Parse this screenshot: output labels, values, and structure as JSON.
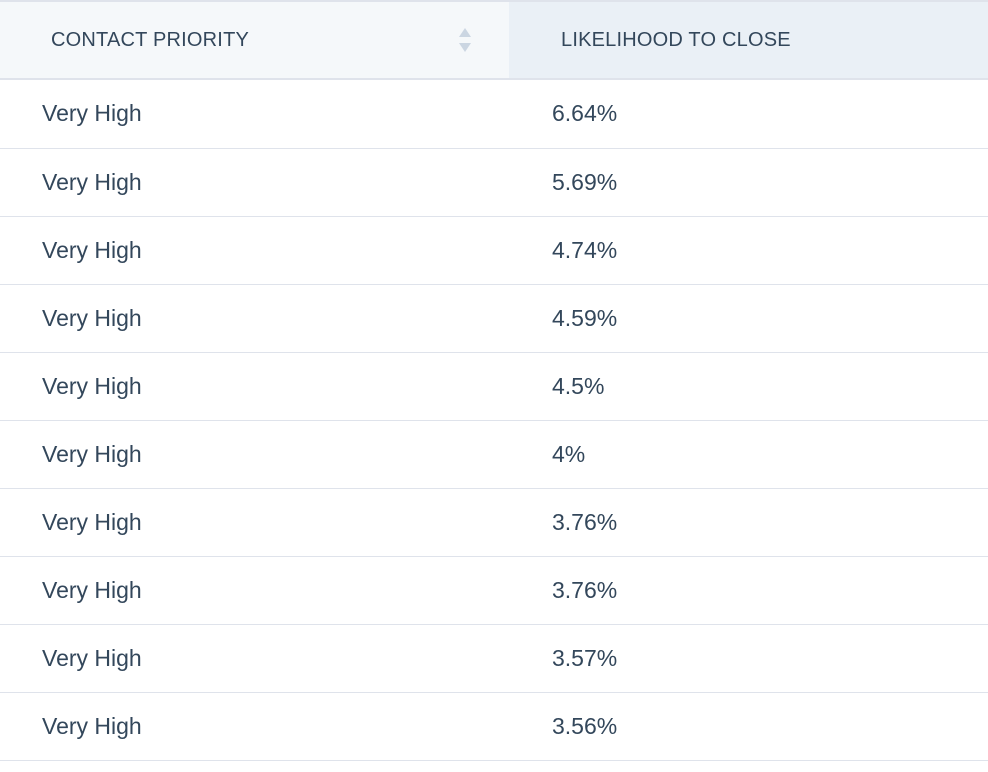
{
  "table": {
    "columns": [
      {
        "label": "CONTACT PRIORITY",
        "sortable": true,
        "sort_icon": "sort-up-down-icon"
      },
      {
        "label": "LIKELIHOOD TO CLOSE",
        "sortable": false
      }
    ],
    "rows": [
      {
        "priority": "Very High",
        "likelihood": "6.64%"
      },
      {
        "priority": "Very High",
        "likelihood": "5.69%"
      },
      {
        "priority": "Very High",
        "likelihood": "4.74%"
      },
      {
        "priority": "Very High",
        "likelihood": "4.59%"
      },
      {
        "priority": "Very High",
        "likelihood": "4.5%"
      },
      {
        "priority": "Very High",
        "likelihood": "4%"
      },
      {
        "priority": "Very High",
        "likelihood": "3.76%"
      },
      {
        "priority": "Very High",
        "likelihood": "3.76%"
      },
      {
        "priority": "Very High",
        "likelihood": "3.57%"
      },
      {
        "priority": "Very High",
        "likelihood": "3.56%"
      }
    ]
  },
  "colors": {
    "text": "#33475b",
    "header_bg": "#f5f8fa",
    "header_active_bg": "#eaf0f6",
    "border": "#dfe3eb",
    "sort_icon": "#cbd6e2"
  }
}
